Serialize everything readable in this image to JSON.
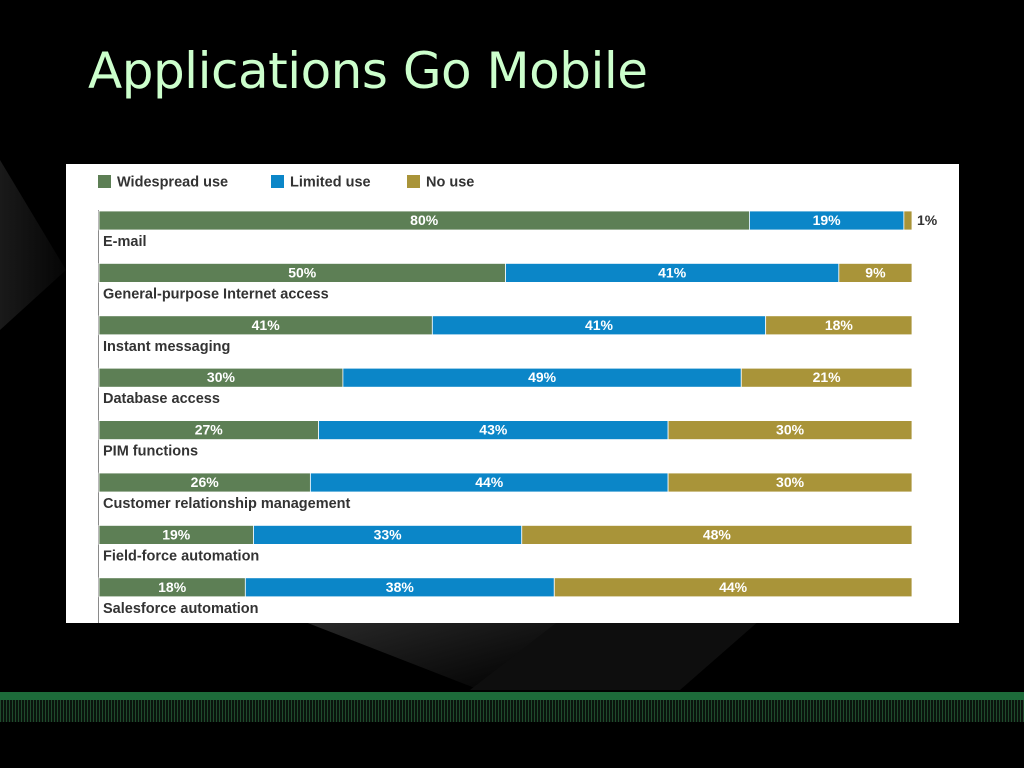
{
  "slide": {
    "title": "Applications Go Mobile"
  },
  "colors": {
    "background": "#000000",
    "title": "#ccffcc",
    "footer_band": "#1d6b3a",
    "widespread": "#5d7f55",
    "limited": "#0b86c8",
    "no_use": "#a99439"
  },
  "chart_data": {
    "type": "bar",
    "orientation": "horizontal",
    "stacked": true,
    "percent_scale": true,
    "xlim": [
      0,
      100
    ],
    "grid": false,
    "legend_position": "top-left",
    "categories": [
      "E-mail",
      "General-purpose Internet access",
      "Instant messaging",
      "Database access",
      "PIM functions",
      "Customer relationship management",
      "Field-force automation",
      "Salesforce automation"
    ],
    "series": [
      {
        "name": "Widespread use",
        "color": "#5d7f55",
        "values": [
          80,
          50,
          41,
          30,
          27,
          26,
          19,
          18
        ]
      },
      {
        "name": "Limited use",
        "color": "#0b86c8",
        "values": [
          19,
          41,
          41,
          49,
          43,
          44,
          33,
          38
        ]
      },
      {
        "name": "No use",
        "color": "#a99439",
        "values": [
          1,
          9,
          18,
          21,
          30,
          30,
          48,
          44
        ]
      }
    ]
  }
}
